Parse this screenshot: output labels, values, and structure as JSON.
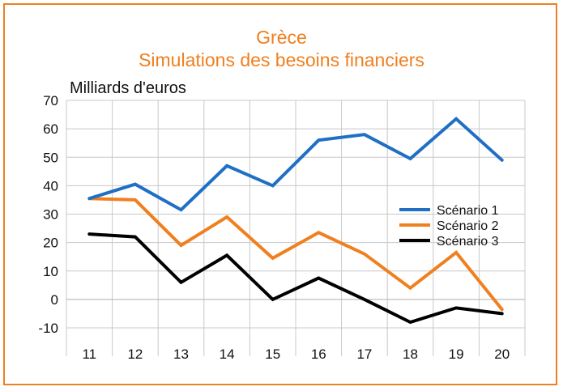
{
  "chart_data": {
    "type": "line",
    "title": "Grèce",
    "subtitle": "Simulations des besoins financiers",
    "ylabel": "Milliards d'euros",
    "xlabel": "",
    "categories": [
      "11",
      "12",
      "13",
      "14",
      "15",
      "16",
      "17",
      "18",
      "19",
      "20"
    ],
    "ylim": [
      -10,
      70
    ],
    "yticks": [
      "-10",
      "0",
      "10",
      "20",
      "30",
      "40",
      "50",
      "60",
      "70"
    ],
    "grid": true,
    "legend_position": "right",
    "series": [
      {
        "name": "Scénario 1",
        "color": "#1f6fc5",
        "values": [
          35.5,
          40.5,
          31.5,
          47,
          40,
          56,
          58,
          49.5,
          63.5,
          49
        ]
      },
      {
        "name": "Scénario 2",
        "color": "#f07f1e",
        "values": [
          35.5,
          35,
          19,
          29,
          14.5,
          23.5,
          16,
          4,
          16.5,
          -3.5
        ]
      },
      {
        "name": "Scénario 3",
        "color": "#000000",
        "values": [
          23,
          22,
          6,
          15.5,
          0,
          7.5,
          0,
          -8,
          -3,
          -5
        ]
      }
    ]
  }
}
